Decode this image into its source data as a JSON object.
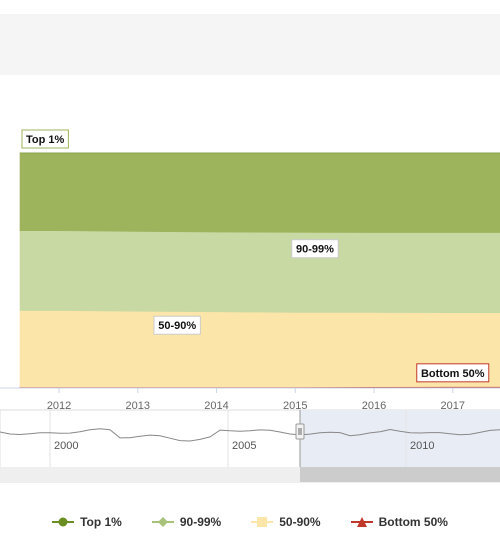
{
  "chart_data": {
    "type": "area",
    "stacked": true,
    "x": [
      2011.5,
      2012,
      2013,
      2014,
      2015,
      2016,
      2017,
      2017.6
    ],
    "xlim": [
      2011.25,
      2017.6
    ],
    "ylim": [
      0,
      100
    ],
    "x_ticks": [
      "2012",
      "2013",
      "2014",
      "2015",
      "2016",
      "2017"
    ],
    "series": [
      {
        "name": "Bottom 50%",
        "color": "#c0392b",
        "values": [
          0.3,
          0.3,
          0.3,
          0.3,
          0.3,
          0.4,
          0.5,
          0.5
        ]
      },
      {
        "name": "50-90%",
        "color": "#fce5a8",
        "values": [
          32.5,
          32.5,
          32.2,
          32.0,
          31.7,
          31.6,
          31.4,
          31.4
        ]
      },
      {
        "name": "90-99%",
        "color": "#c9d9a4",
        "values": [
          34.0,
          34.0,
          34.0,
          33.9,
          34.1,
          34.0,
          34.1,
          34.1
        ]
      },
      {
        "name": "Top 1%",
        "color": "#9db35c",
        "values": [
          33.2,
          33.2,
          33.5,
          33.8,
          33.9,
          34.0,
          34.0,
          34.0
        ]
      }
    ],
    "annotations": [
      "Top 1%",
      "90-99%",
      "50-90%",
      "Bottom 50%"
    ],
    "grid": true,
    "legend": "bottom"
  },
  "navigator": {
    "labels": [
      "2000",
      "2005",
      "2010"
    ]
  },
  "legend": [
    {
      "label": "Top 1%",
      "color": "#6b8e23",
      "symbol": "circle"
    },
    {
      "label": "90-99%",
      "color": "#a9c27a",
      "symbol": "diamond"
    },
    {
      "label": "50-90%",
      "color": "#fce5a8",
      "symbol": "square"
    },
    {
      "label": "Bottom 50%",
      "color": "#c0392b",
      "symbol": "triangle"
    }
  ]
}
